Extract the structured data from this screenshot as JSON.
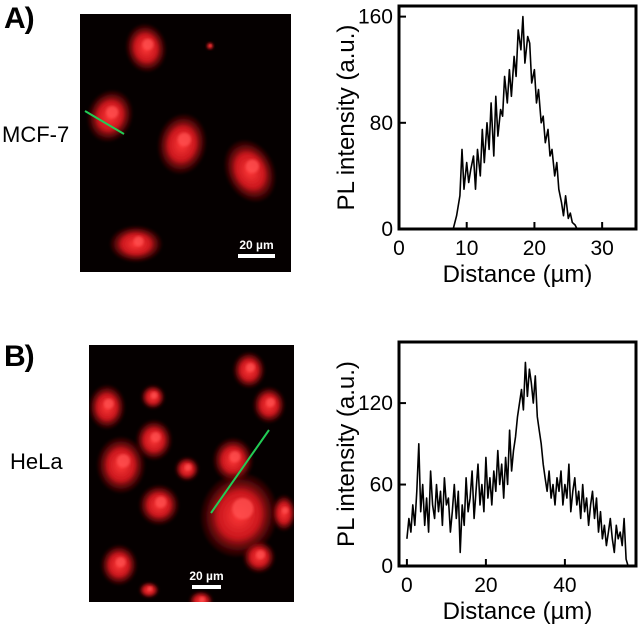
{
  "panels": [
    {
      "letter": "A)",
      "cell_line": "MCF-7",
      "scale_bar": "20 µm",
      "cell_color": "#e0191f",
      "line_color": "#22cc55"
    },
    {
      "letter": "B)",
      "cell_line": "HeLa",
      "scale_bar": "20 µm",
      "cell_color": "#e0191f",
      "line_color": "#22cc55"
    }
  ],
  "chart_data": [
    {
      "type": "line",
      "title": "",
      "xlabel": "Distance (µm)",
      "ylabel": "PL intensity (a.u.)",
      "xlim": [
        0,
        35
      ],
      "ylim": [
        0,
        168
      ],
      "xticks": [
        0,
        10,
        20,
        30
      ],
      "yticks": [
        0,
        80,
        160
      ],
      "grid": false,
      "series": [
        {
          "x": [
            0,
            1,
            2,
            3,
            4,
            5,
            6,
            7,
            8,
            8.5,
            9,
            9.3,
            9.6,
            10,
            10.3,
            10.6,
            11,
            11.3,
            11.6,
            12,
            12.3,
            12.6,
            13,
            13.3,
            13.6,
            14,
            14.3,
            14.6,
            15,
            15.3,
            15.6,
            16,
            16.3,
            16.6,
            17,
            17.3,
            17.6,
            18,
            18.3,
            18.6,
            19,
            19.3,
            19.6,
            20,
            20.3,
            20.6,
            21,
            21.3,
            21.6,
            22,
            22.3,
            22.6,
            23,
            23.3,
            23.6,
            24,
            24.3,
            24.6,
            25,
            25.3,
            25.6,
            26,
            26.3,
            26.6,
            27,
            28,
            29,
            30,
            31,
            32,
            33
          ],
          "y": [
            0,
            0,
            0,
            0,
            0,
            0,
            0,
            0,
            0,
            10,
            25,
            60,
            30,
            50,
            35,
            45,
            55,
            30,
            60,
            40,
            75,
            50,
            80,
            60,
            95,
            55,
            100,
            70,
            90,
            85,
            115,
            95,
            120,
            100,
            130,
            115,
            150,
            135,
            160,
            125,
            145,
            140,
            110,
            120,
            95,
            105,
            80,
            85,
            65,
            75,
            55,
            60,
            40,
            50,
            30,
            20,
            10,
            25,
            8,
            12,
            5,
            3,
            0,
            0,
            0,
            0,
            0,
            0,
            0,
            0,
            0
          ]
        }
      ]
    },
    {
      "type": "line",
      "title": "",
      "xlabel": "Distance (µm)",
      "ylabel": "PL intensity (a.u.)",
      "xlim": [
        -2,
        58
      ],
      "ylim": [
        0,
        165
      ],
      "xticks": [
        0,
        20,
        40
      ],
      "yticks": [
        0,
        60,
        120
      ],
      "grid": false,
      "series": [
        {
          "x": [
            0,
            0.5,
            1,
            1.5,
            2,
            2.5,
            3,
            3.5,
            4,
            4.5,
            5,
            5.5,
            6,
            6.5,
            7,
            7.5,
            8,
            8.5,
            9,
            9.5,
            10,
            10.5,
            11,
            11.5,
            12,
            12.5,
            13,
            13.5,
            14,
            14.5,
            15,
            15.5,
            16,
            16.5,
            17,
            17.5,
            18,
            18.5,
            19,
            19.5,
            20,
            20.5,
            21,
            21.5,
            22,
            22.5,
            23,
            23.5,
            24,
            24.5,
            25,
            25.5,
            26,
            26.5,
            27,
            27.5,
            28,
            28.5,
            29,
            29.5,
            30,
            30.5,
            31,
            31.5,
            32,
            32.5,
            33,
            33.5,
            34,
            34.5,
            35,
            35.5,
            36,
            36.5,
            37,
            37.5,
            38,
            38.5,
            39,
            39.5,
            40,
            40.5,
            41,
            41.5,
            42,
            42.5,
            43,
            43.5,
            44,
            44.5,
            45,
            45.5,
            46,
            46.5,
            47,
            47.5,
            48,
            48.5,
            49,
            49.5,
            50,
            50.5,
            51,
            51.5,
            52,
            52.5,
            53,
            53.5,
            54,
            54.5,
            55,
            55.5,
            56
          ],
          "y": [
            20,
            35,
            25,
            45,
            30,
            55,
            90,
            40,
            60,
            30,
            50,
            25,
            70,
            45,
            35,
            60,
            40,
            55,
            30,
            65,
            45,
            50,
            25,
            40,
            60,
            35,
            55,
            10,
            45,
            30,
            65,
            40,
            50,
            70,
            35,
            55,
            75,
            45,
            60,
            40,
            80,
            50,
            65,
            45,
            70,
            55,
            85,
            60,
            75,
            50,
            80,
            60,
            100,
            70,
            85,
            95,
            110,
            120,
            130,
            115,
            150,
            125,
            145,
            135,
            120,
            140,
            110,
            100,
            90,
            75,
            65,
            55,
            70,
            50,
            60,
            45,
            65,
            55,
            70,
            45,
            60,
            50,
            75,
            40,
            55,
            65,
            45,
            55,
            35,
            60,
            40,
            50,
            30,
            45,
            55,
            35,
            50,
            25,
            40,
            20,
            30,
            15,
            25,
            35,
            20,
            10,
            30,
            20,
            25,
            15,
            35,
            5,
            0
          ]
        }
      ]
    }
  ]
}
